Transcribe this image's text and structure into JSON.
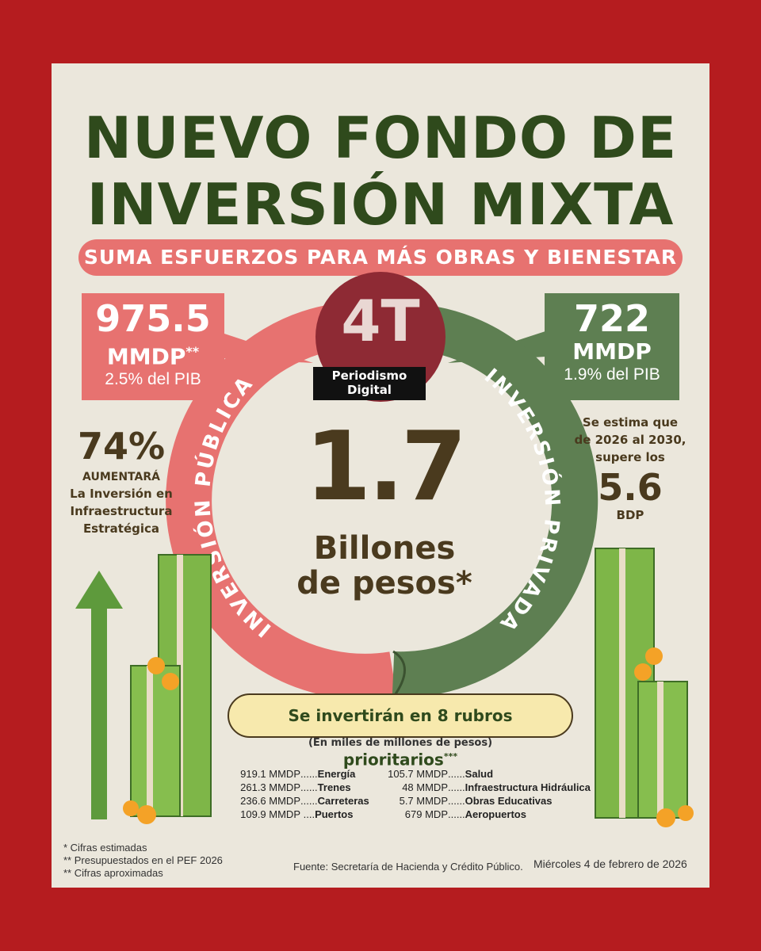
{
  "title": {
    "line1": "NUEVO FONDO DE",
    "line2": "INVERSIÓN MIXTA"
  },
  "subtitle": "SUMA ESFUERZOS PARA MÁS OBRAS Y BIENESTAR",
  "logo": {
    "mark": "4T",
    "line1": "Periodismo",
    "line2": "Digital"
  },
  "publica": {
    "amount": "975.5",
    "unit": "MMDP",
    "unit_mark": "**",
    "pib": "2.5% del PIB",
    "ring_label": "INVERSIÓN PÚBLICA"
  },
  "privada": {
    "amount": "722",
    "unit": "MMDP",
    "pib": "1.9% del PIB",
    "ring_label": "INVERSIÓN PRIVADA"
  },
  "total": {
    "value": "1.7",
    "word1": "Billones",
    "word2": "de pesos*"
  },
  "left_stat": {
    "percent": "74%",
    "line1": "AUMENTARÁ",
    "line2": "La Inversión en",
    "line3": "Infraestructura",
    "line4": "Estratégica"
  },
  "right_stat": {
    "line1": "Se estima que",
    "line2": "de 2026 al 2030,",
    "line3": "supere los",
    "value": "5.6",
    "unit": "BDP"
  },
  "rubros": {
    "heading": "Se invertirán en 8 rubros prioritarios",
    "heading_mark": "***",
    "subheading": "(En miles de millones de pesos)",
    "left": [
      {
        "value": "919.1 MMDP",
        "dots": "......",
        "name": "Energía"
      },
      {
        "value": "261.3 MMDP",
        "dots": "......",
        "name": "Trenes"
      },
      {
        "value": "236.6 MMDP",
        "dots": "......",
        "name": "Carreteras"
      },
      {
        "value": "109.9 MMDP",
        "dots": " ....",
        "name": "Puertos"
      }
    ],
    "right": [
      {
        "value": "105.7 MMDP",
        "dots": "......",
        "name": "Salud"
      },
      {
        "value": "48 MMDP",
        "dots": "......",
        "name": "Infraestructura Hidráulica"
      },
      {
        "value": "5.7 MMDP",
        "dots": "......",
        "name": "Obras Educativas"
      },
      {
        "value": "679 MDP",
        "dots": "......",
        "name": "Aeropuertos"
      }
    ]
  },
  "footnotes": [
    "*  Cifras estimadas",
    "** Presupuestados en el PEF 2026",
    "** Cifras aproximadas"
  ],
  "source": "Fuente: Secretaría de Hacienda y Crédito Público.",
  "date": "Miércoles 4 de febrero de 2026",
  "colors": {
    "background": "#b51c1f",
    "panel": "#ebe7dc",
    "dark_green": "#2f4a1c",
    "salmon": "#e77270",
    "green": "#5e7f52",
    "brown": "#4a3a1e",
    "maroon": "#8e2a34"
  }
}
